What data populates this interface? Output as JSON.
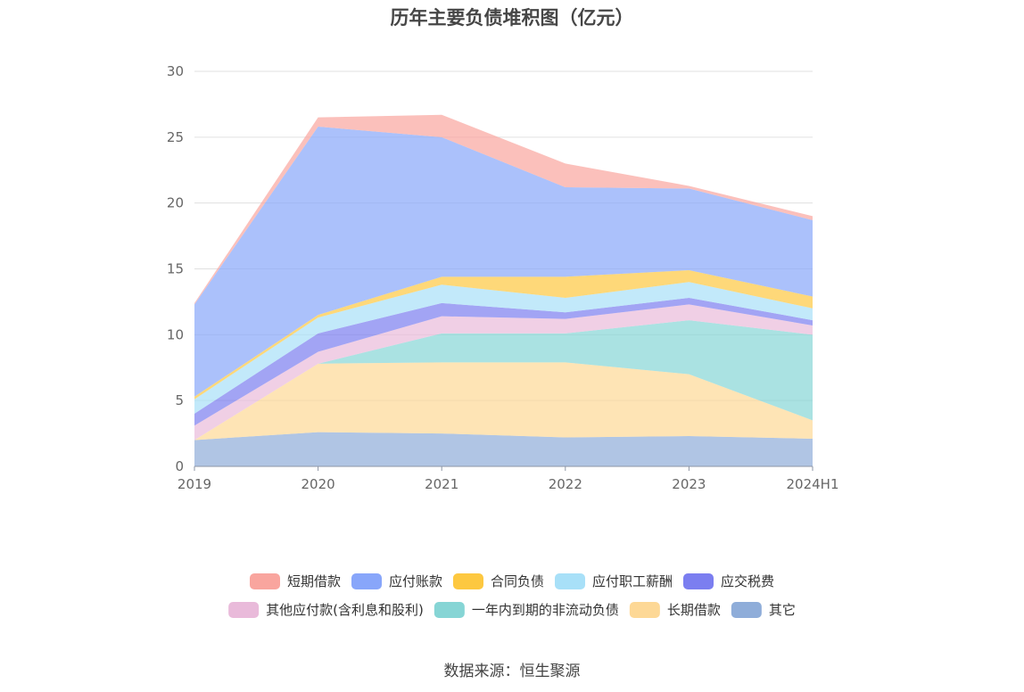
{
  "chart_data": {
    "type": "area",
    "stacked": true,
    "title": "历年主要负债堆积图（亿元）",
    "x": [
      "2019",
      "2020",
      "2021",
      "2022",
      "2023",
      "2024H1"
    ],
    "ylim": [
      0,
      30
    ],
    "yticks": [
      0,
      5,
      10,
      15,
      20,
      25,
      30
    ],
    "grid": "horizontal",
    "legend_position": "bottom",
    "series": [
      {
        "name": "其它",
        "color": "#8fadd9",
        "values": [
          2.0,
          2.6,
          2.5,
          2.2,
          2.3,
          2.1
        ]
      },
      {
        "name": "长期借款",
        "color": "#fdd896",
        "values": [
          0.0,
          5.2,
          5.4,
          5.7,
          4.7,
          1.4
        ]
      },
      {
        "name": "一年内到期的非流动负债",
        "color": "#86d5d5",
        "values": [
          0.0,
          0.0,
          2.2,
          2.2,
          4.1,
          6.5
        ]
      },
      {
        "name": "其他应付款(含利息和股利)",
        "color": "#e9bada",
        "values": [
          1.1,
          0.9,
          1.3,
          1.1,
          1.2,
          0.7
        ]
      },
      {
        "name": "应交税费",
        "color": "#7b7ef0",
        "values": [
          0.9,
          1.4,
          1.0,
          0.5,
          0.5,
          0.4
        ]
      },
      {
        "name": "应付职工薪酬",
        "color": "#a8e0f8",
        "values": [
          1.1,
          1.2,
          1.4,
          1.1,
          1.2,
          0.9
        ]
      },
      {
        "name": "合同负债",
        "color": "#fdc840",
        "values": [
          0.2,
          0.2,
          0.6,
          1.6,
          0.9,
          0.9
        ]
      },
      {
        "name": "应付账款",
        "color": "#88a6fa",
        "values": [
          7.0,
          14.3,
          10.6,
          6.8,
          6.2,
          5.8
        ]
      },
      {
        "name": "短期借款",
        "color": "#f9a59e",
        "values": [
          0.1,
          0.7,
          1.7,
          1.8,
          0.2,
          0.3
        ]
      }
    ],
    "legend_order": [
      "短期借款",
      "应付账款",
      "合同负债",
      "应付职工薪酬",
      "应交税费",
      "其他应付款(含利息和股利)",
      "一年内到期的非流动负债",
      "长期借款",
      "其它"
    ]
  },
  "source": "数据来源：恒生聚源"
}
